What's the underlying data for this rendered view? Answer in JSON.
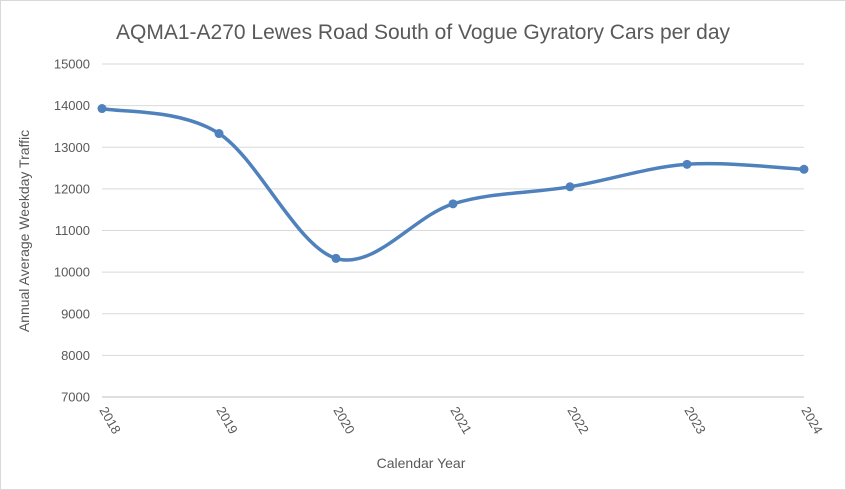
{
  "chart_data": {
    "type": "line",
    "title": "AQMA1-A270 Lewes Road South of Vogue Gyratory Cars per day",
    "xlabel": "Calendar Year",
    "ylabel": "Annual Average Weekday Traffic",
    "categories": [
      "2018",
      "2019",
      "2020",
      "2021",
      "2022",
      "2023",
      "2024"
    ],
    "series": [
      {
        "values": [
          13930,
          13330,
          10330,
          11640,
          12050,
          12590,
          12470
        ],
        "color": "#4f81bd",
        "smooth": true,
        "markers": true
      }
    ],
    "ylim": [
      7000,
      15000
    ],
    "yticks": [
      7000,
      8000,
      9000,
      10000,
      11000,
      12000,
      13000,
      14000,
      15000
    ],
    "grid": "horizontal",
    "legend": "none"
  }
}
